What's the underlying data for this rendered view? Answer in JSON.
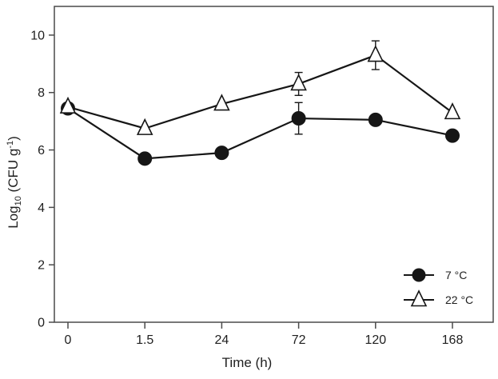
{
  "chart_data": {
    "type": "line",
    "title": "",
    "categories": [
      "0",
      "1.5",
      "24",
      "72",
      "120",
      "168"
    ],
    "xlabel": "Time (h)",
    "ylabel": {
      "prefix": "Log",
      "sub": "10",
      "mid": " (CFU g",
      "sup": "-1",
      "suffix": ")"
    },
    "ylim": [
      0,
      11
    ],
    "yticks": [
      0,
      2,
      4,
      6,
      8,
      10
    ],
    "grid": false,
    "legend_position": "bottom-right-inside",
    "series": [
      {
        "name": "7 °C",
        "marker": "filled-circle",
        "values": [
          7.45,
          5.7,
          5.9,
          7.1,
          7.05,
          6.5
        ],
        "errors": [
          null,
          null,
          null,
          0.55,
          null,
          null
        ]
      },
      {
        "name": "22 °C",
        "marker": "open-triangle",
        "values": [
          7.5,
          6.75,
          7.6,
          8.3,
          9.3,
          7.3
        ],
        "errors": [
          null,
          null,
          null,
          0.4,
          0.5,
          null
        ]
      }
    ],
    "colors": {
      "series": "#161616",
      "axis": "#4a4a4a",
      "text": "#1f1f1f",
      "background": "#ffffff"
    }
  }
}
